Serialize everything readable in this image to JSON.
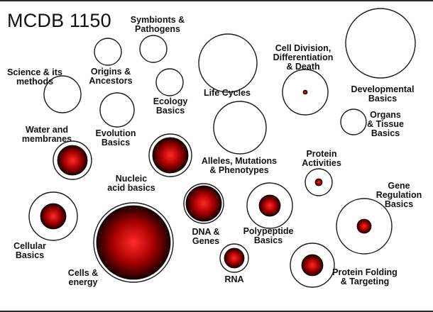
{
  "title": "MCDB 1150",
  "colors": {
    "outline": "#1a1a1a",
    "core_center": "#ff2a2a",
    "core_mid": "#a80000",
    "core_edge": "#1a0000"
  },
  "topics": [
    {
      "id": "symbionts",
      "label": "Symbionts &\nPathogens",
      "filled": false
    },
    {
      "id": "origins",
      "label": "Origins &\nAncestors",
      "filled": false
    },
    {
      "id": "science",
      "label": "Science & its\nmethods",
      "filled": false
    },
    {
      "id": "ecology",
      "label": "Ecology\nBasics",
      "filled": false
    },
    {
      "id": "evolution",
      "label": "Evolution\nBasics",
      "filled": false
    },
    {
      "id": "life-cycles",
      "label": "Life Cycles",
      "filled": false
    },
    {
      "id": "cell-division",
      "label": "Cell Division,\nDifferentiation\n& Death",
      "filled": true
    },
    {
      "id": "developmental",
      "label": "Developmental\nBasics",
      "filled": false
    },
    {
      "id": "organs",
      "label": "Organs\n& Tissue\nBasics",
      "filled": false
    },
    {
      "id": "water",
      "label": "Water and\nmembranes",
      "filled": true
    },
    {
      "id": "nucleic",
      "label": "Nucleic\nacid basics",
      "filled": true
    },
    {
      "id": "alleles",
      "label": "Alleles, Mutations\n& Phenotypes",
      "filled": false
    },
    {
      "id": "protein-activities",
      "label": "Protein\nActivities",
      "filled": true
    },
    {
      "id": "gene-regulation",
      "label": "Gene\nRegulation\nBasics",
      "filled": true
    },
    {
      "id": "cellular",
      "label": "Cellular\nBasics",
      "filled": true
    },
    {
      "id": "cells-energy",
      "label": "Cells &\nenergy",
      "filled": true
    },
    {
      "id": "dna-genes",
      "label": "DNA &\nGenes",
      "filled": true
    },
    {
      "id": "polypeptide",
      "label": "Polypeptide\nBasics",
      "filled": true
    },
    {
      "id": "rna",
      "label": "RNA",
      "filled": true
    },
    {
      "id": "protein-folding",
      "label": "Protein Folding\n& Targeting",
      "filled": true
    }
  ]
}
